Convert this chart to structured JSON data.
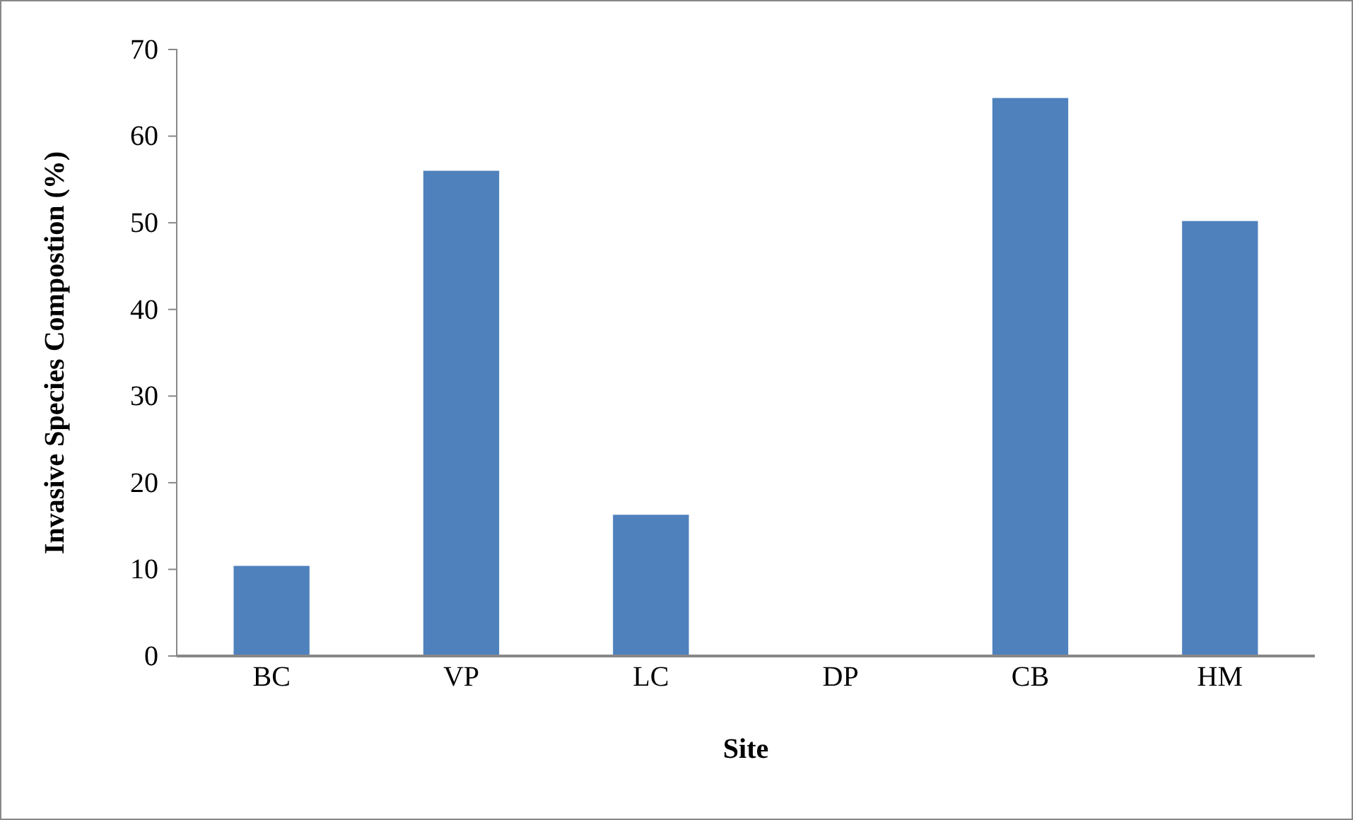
{
  "chart_data": {
    "type": "bar",
    "xlabel": "Site",
    "ylabel": "Invasive Species Compostion (%)",
    "categories": [
      "BC",
      "VP",
      "LC",
      "DP",
      "CB",
      "HM"
    ],
    "values": [
      10.4,
      56.0,
      16.3,
      0,
      64.4,
      50.2
    ],
    "color": "#4f81bd",
    "ylim": [
      0,
      70
    ],
    "yticks": [
      0,
      10,
      20,
      30,
      40,
      50,
      60,
      70
    ],
    "grid": false
  }
}
